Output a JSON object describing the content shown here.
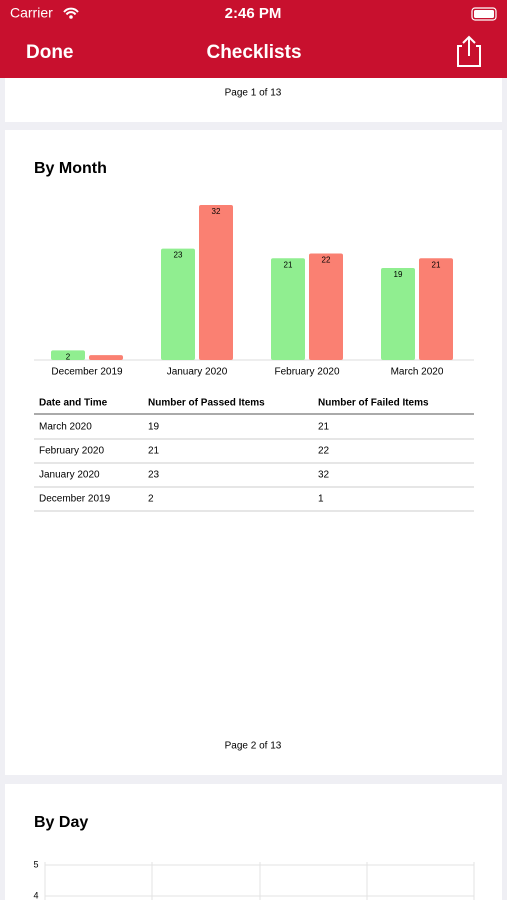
{
  "status_bar": {
    "carrier": "Carrier",
    "time": "2:46 PM"
  },
  "nav_bar": {
    "left_button": "Done",
    "title": "Checklists"
  },
  "pages": [
    {
      "footer": "Page 1 of 13"
    },
    {
      "footer": "Page 2 of 13"
    }
  ],
  "chart_data": [
    {
      "type": "bar",
      "title": "By Month",
      "categories": [
        "December 2019",
        "January 2020",
        "February 2020",
        "March 2020"
      ],
      "series": [
        {
          "color": "#90ee90",
          "values": [
            2,
            23,
            21,
            19
          ]
        },
        {
          "color": "#fa8072",
          "values": [
            1,
            32,
            22,
            21
          ]
        }
      ]
    },
    {
      "type": "bar",
      "title": "By Day",
      "ylim": [
        0,
        5
      ],
      "yticks": [
        4,
        5
      ],
      "grid": true
    }
  ],
  "table": {
    "columns": [
      "Date and Time",
      "Number of Passed Items",
      "Number of Failed Items"
    ],
    "rows": [
      [
        "March 2020",
        19,
        21
      ],
      [
        "February 2020",
        21,
        22
      ],
      [
        "January 2020",
        23,
        32
      ],
      [
        "December 2019",
        2,
        1
      ]
    ]
  }
}
